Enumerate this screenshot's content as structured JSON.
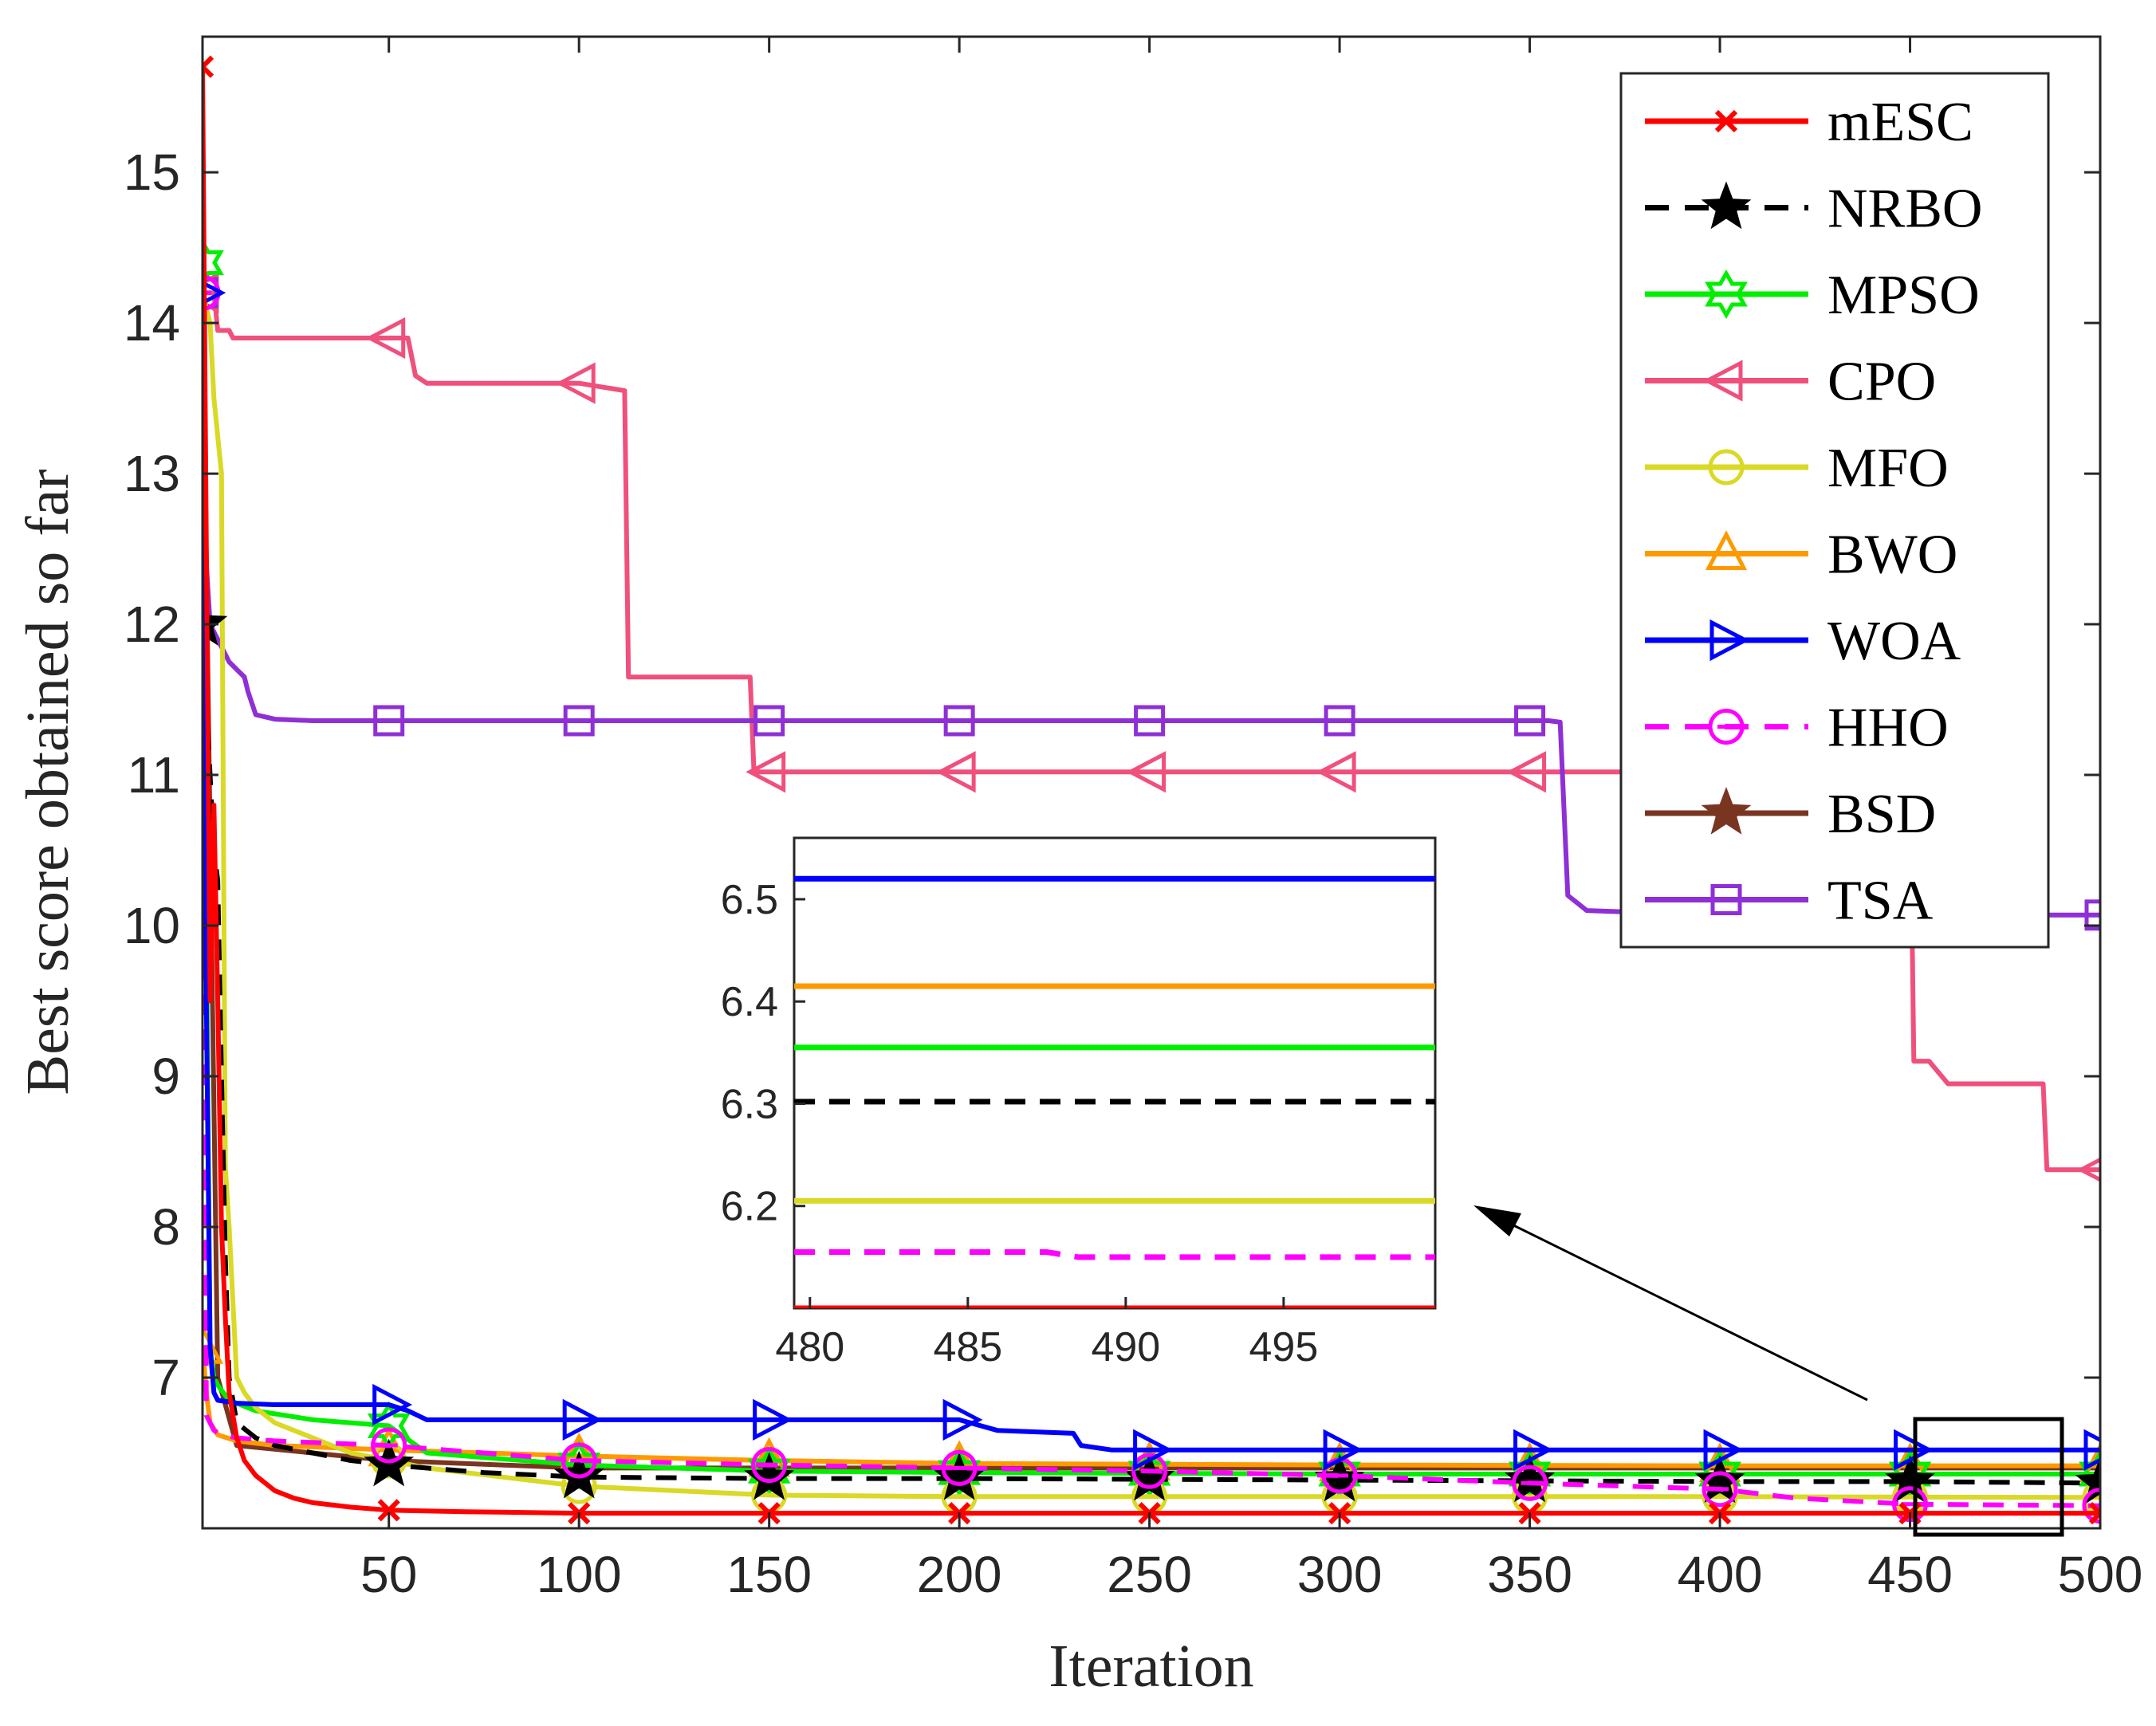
{
  "chart_data": {
    "type": "line",
    "xlabel": "Iteration",
    "ylabel": "Best score obtained so far",
    "xlim": [
      1,
      500
    ],
    "ylim": [
      6.0,
      15.9
    ],
    "xticks": [
      50,
      100,
      150,
      200,
      250,
      300,
      350,
      400,
      450,
      500
    ],
    "xtick_labels": [
      "50",
      "100",
      "150",
      "200",
      "250",
      "300",
      "350",
      "400",
      "450",
      "500"
    ],
    "yticks": [
      7,
      8,
      9,
      10,
      11,
      12,
      13,
      14,
      15
    ],
    "ytick_labels": [
      "7",
      "8",
      "9",
      "10",
      "11",
      "12",
      "13",
      "14",
      "15"
    ],
    "legend_position": "top-right",
    "series": [
      {
        "name": "mESC",
        "color": "#ff0000",
        "dash": "solid",
        "marker": "x",
        "x": [
          1,
          2,
          3,
          4,
          5,
          6,
          7,
          8,
          10,
          12,
          15,
          20,
          25,
          30,
          40,
          50,
          70,
          100,
          150,
          200,
          300,
          400,
          500
        ],
        "y": [
          15.7,
          12.5,
          9.5,
          10.8,
          9.5,
          8.0,
          7.4,
          6.9,
          6.6,
          6.45,
          6.35,
          6.25,
          6.2,
          6.17,
          6.14,
          6.12,
          6.11,
          6.1,
          6.1,
          6.1,
          6.1,
          6.1,
          6.1
        ]
      },
      {
        "name": "NRBO",
        "color": "#000000",
        "dash": "dashed",
        "marker": "star",
        "x": [
          1,
          3,
          4,
          5,
          6,
          7,
          8,
          10,
          15,
          20,
          30,
          40,
          50,
          75,
          100,
          150,
          200,
          300,
          400,
          450,
          500
        ],
        "y": [
          12.0,
          11.0,
          10.5,
          10.3,
          9.0,
          7.8,
          7.0,
          6.7,
          6.6,
          6.55,
          6.5,
          6.45,
          6.42,
          6.37,
          6.34,
          6.33,
          6.33,
          6.32,
          6.31,
          6.31,
          6.3
        ]
      },
      {
        "name": "MPSO",
        "color": "#00ee00",
        "dash": "solid",
        "marker": "hexagram",
        "x": [
          1,
          2,
          3,
          4,
          5,
          8,
          15,
          30,
          50,
          60,
          100,
          150,
          200,
          300,
          400,
          500
        ],
        "y": [
          14.4,
          10.0,
          7.2,
          7.0,
          6.95,
          6.85,
          6.78,
          6.72,
          6.68,
          6.5,
          6.42,
          6.38,
          6.37,
          6.36,
          6.36,
          6.36
        ]
      },
      {
        "name": "CPO",
        "color": "#f0507c",
        "dash": "solid",
        "marker": "triangle-left",
        "x": [
          1,
          4,
          5,
          8,
          9,
          50,
          55,
          57,
          60,
          100,
          112,
          113,
          145,
          146,
          450,
          451,
          455,
          460,
          485,
          486,
          500
        ],
        "y": [
          14.2,
          14.2,
          13.95,
          13.95,
          13.9,
          13.9,
          13.9,
          13.65,
          13.6,
          13.6,
          13.55,
          11.65,
          11.65,
          11.02,
          11.02,
          9.1,
          9.1,
          8.95,
          8.95,
          8.38,
          8.38
        ]
      },
      {
        "name": "MFO",
        "color": "#d9d926",
        "dash": "solid",
        "marker": "circle",
        "x": [
          1,
          3,
          4,
          6,
          7,
          8,
          10,
          12,
          15,
          20,
          40,
          60,
          100,
          150,
          200,
          300,
          400,
          500
        ],
        "y": [
          14.2,
          14.0,
          13.5,
          13.0,
          8.4,
          8.0,
          7.0,
          6.9,
          6.8,
          6.7,
          6.5,
          6.4,
          6.28,
          6.22,
          6.21,
          6.21,
          6.21,
          6.205
        ]
      },
      {
        "name": "BWO",
        "color": "#ff9900",
        "dash": "solid",
        "marker": "triangle-up",
        "x": [
          1,
          2,
          3,
          5,
          10,
          20,
          50,
          100,
          150,
          200,
          300,
          400,
          500
        ],
        "y": [
          7.2,
          6.9,
          6.7,
          6.62,
          6.58,
          6.55,
          6.52,
          6.48,
          6.45,
          6.43,
          6.42,
          6.415,
          6.415
        ]
      },
      {
        "name": "WOA",
        "color": "#0000ff",
        "dash": "solid",
        "marker": "triangle-right",
        "x": [
          1,
          2,
          3,
          4,
          5,
          10,
          20,
          50,
          55,
          60,
          100,
          200,
          210,
          230,
          232,
          240,
          300,
          400,
          500
        ],
        "y": [
          14.2,
          9.5,
          7.2,
          6.9,
          6.85,
          6.83,
          6.82,
          6.82,
          6.78,
          6.72,
          6.72,
          6.72,
          6.65,
          6.63,
          6.55,
          6.52,
          6.52,
          6.52,
          6.52
        ]
      },
      {
        "name": "HHO",
        "color": "#ff00ff",
        "dash": "dashed",
        "marker": "circle-dash",
        "x": [
          1,
          2,
          4,
          6,
          10,
          20,
          40,
          50,
          100,
          150,
          200,
          250,
          300,
          350,
          400,
          420,
          450,
          500
        ],
        "y": [
          14.2,
          6.75,
          6.65,
          6.62,
          6.6,
          6.58,
          6.56,
          6.55,
          6.45,
          6.42,
          6.4,
          6.38,
          6.35,
          6.3,
          6.26,
          6.2,
          6.16,
          6.15
        ]
      },
      {
        "name": "BSD",
        "color": "#7a3520",
        "dash": "solid",
        "marker": "star",
        "x": [
          1,
          5,
          10,
          50,
          100,
          500
        ],
        "y": [
          14.2,
          7.0,
          6.55,
          6.45,
          6.4,
          6.4
        ]
      },
      {
        "name": "TSA",
        "color": "#8f2fd6",
        "dash": "solid",
        "marker": "square",
        "x": [
          1,
          2,
          3,
          5,
          8,
          10,
          12,
          13,
          15,
          20,
          30,
          50,
          100,
          150,
          200,
          250,
          300,
          355,
          358,
          360,
          365,
          400,
          500
        ],
        "y": [
          14.2,
          12.4,
          12.0,
          11.9,
          11.75,
          11.7,
          11.65,
          11.55,
          11.4,
          11.37,
          11.36,
          11.36,
          11.36,
          11.36,
          11.36,
          11.36,
          11.36,
          11.36,
          11.35,
          10.2,
          10.1,
          10.07,
          10.07
        ]
      }
    ],
    "inset": {
      "xlim": [
        479.5,
        499.8
      ],
      "ylim": [
        6.1,
        6.56
      ],
      "xticks": [
        480,
        485,
        490,
        495
      ],
      "xtick_labels": [
        "480",
        "485",
        "490",
        "495"
      ],
      "yticks": [
        6.2,
        6.3,
        6.4,
        6.5
      ],
      "ytick_labels": [
        "6.2",
        "6.3",
        "6.4",
        "6.5"
      ],
      "series": [
        {
          "name": "WOA",
          "color": "#0000ff",
          "dash": "solid",
          "x": [
            479.5,
            499.8
          ],
          "y": [
            6.52,
            6.52
          ]
        },
        {
          "name": "BWO",
          "color": "#ff9900",
          "dash": "solid",
          "x": [
            479.5,
            499.8
          ],
          "y": [
            6.415,
            6.415
          ]
        },
        {
          "name": "MPSO",
          "color": "#00ee00",
          "dash": "solid",
          "x": [
            479.5,
            499.8
          ],
          "y": [
            6.355,
            6.355
          ]
        },
        {
          "name": "NRBO",
          "color": "#000000",
          "dash": "dashed",
          "x": [
            479.5,
            499.8
          ],
          "y": [
            6.302,
            6.302
          ]
        },
        {
          "name": "MFO",
          "color": "#d9d926",
          "dash": "solid",
          "x": [
            479.5,
            499.8
          ],
          "y": [
            6.205,
            6.205
          ]
        },
        {
          "name": "HHO",
          "color": "#ff00ff",
          "dash": "dashed",
          "x": [
            479.5,
            487.5,
            488.5,
            499.8
          ],
          "y": [
            6.155,
            6.155,
            6.15,
            6.15
          ]
        },
        {
          "name": "mESC",
          "color": "#ff0000",
          "dash": "solid",
          "x": [
            479.5,
            499.8
          ],
          "y": [
            6.1,
            6.1
          ]
        }
      ]
    }
  }
}
